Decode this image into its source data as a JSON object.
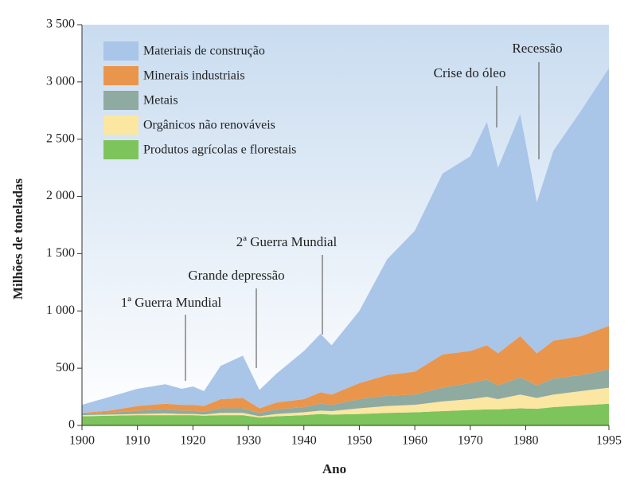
{
  "chart_data": {
    "type": "stacked_area",
    "ylabel": "Milhões de toneladas",
    "xlabel": "Ano",
    "x": [
      1900,
      1905,
      1910,
      1915,
      1918,
      1920,
      1922,
      1925,
      1929,
      1932,
      1935,
      1940,
      1943,
      1945,
      1950,
      1955,
      1960,
      1965,
      1970,
      1973,
      1975,
      1979,
      1982,
      1985,
      1990,
      1995
    ],
    "series": [
      {
        "name": "Materiais de construção",
        "color": "#a9c5e8",
        "values": [
          70,
          120,
          150,
          170,
          140,
          160,
          130,
          290,
          370,
          160,
          250,
          420,
          510,
          430,
          630,
          1010,
          1230,
          1580,
          1700,
          1950,
          1620,
          1940,
          1320,
          1660,
          1970,
          2250
        ]
      },
      {
        "name": "Minerais industriais",
        "color": "#e9954c",
        "values": [
          10,
          20,
          40,
          50,
          50,
          50,
          50,
          80,
          90,
          40,
          60,
          70,
          100,
          90,
          140,
          180,
          200,
          290,
          280,
          300,
          280,
          360,
          280,
          330,
          340,
          380
        ]
      },
      {
        "name": "Metais",
        "color": "#8faaa0",
        "values": [
          10,
          15,
          30,
          35,
          30,
          30,
          25,
          40,
          40,
          30,
          40,
          45,
          60,
          55,
          80,
          90,
          90,
          120,
          140,
          150,
          120,
          150,
          110,
          140,
          140,
          160
        ]
      },
      {
        "name": "Orgânicos não renováveis",
        "color": "#fbe6a2",
        "values": [
          10,
          10,
          10,
          15,
          10,
          10,
          10,
          20,
          20,
          10,
          20,
          25,
          30,
          30,
          50,
          60,
          65,
          85,
          95,
          110,
          90,
          120,
          95,
          110,
          125,
          140
        ]
      },
      {
        "name": "Produtos agrícolas e florestais",
        "color": "#7ec45c",
        "values": [
          80,
          85,
          90,
          90,
          90,
          90,
          85,
          90,
          90,
          70,
          80,
          90,
          100,
          95,
          100,
          110,
          115,
          125,
          135,
          140,
          140,
          150,
          145,
          160,
          175,
          190
        ]
      }
    ],
    "xlim": [
      1900,
      1995
    ],
    "xticks": [
      1900,
      1910,
      1920,
      1930,
      1940,
      1950,
      1960,
      1970,
      1980,
      1995
    ],
    "ylim": [
      0,
      3500
    ],
    "yticks": [
      0,
      500,
      {
        "value": 1000,
        "label": "1 000"
      },
      {
        "value": 1500,
        "label": "1 500"
      },
      {
        "value": 2000,
        "label": "2 000"
      },
      {
        "value": 2500,
        "label": "2 500"
      },
      {
        "value": 3000,
        "label": "3 000"
      },
      {
        "value": 3500,
        "label": "3 500"
      }
    ],
    "annotations": [
      "1ª Guerra Mundial",
      "Grande depressão",
      "2ª Guerra Mundial",
      "Crise do óleo",
      "Recessão"
    ],
    "legend": "upper left"
  }
}
